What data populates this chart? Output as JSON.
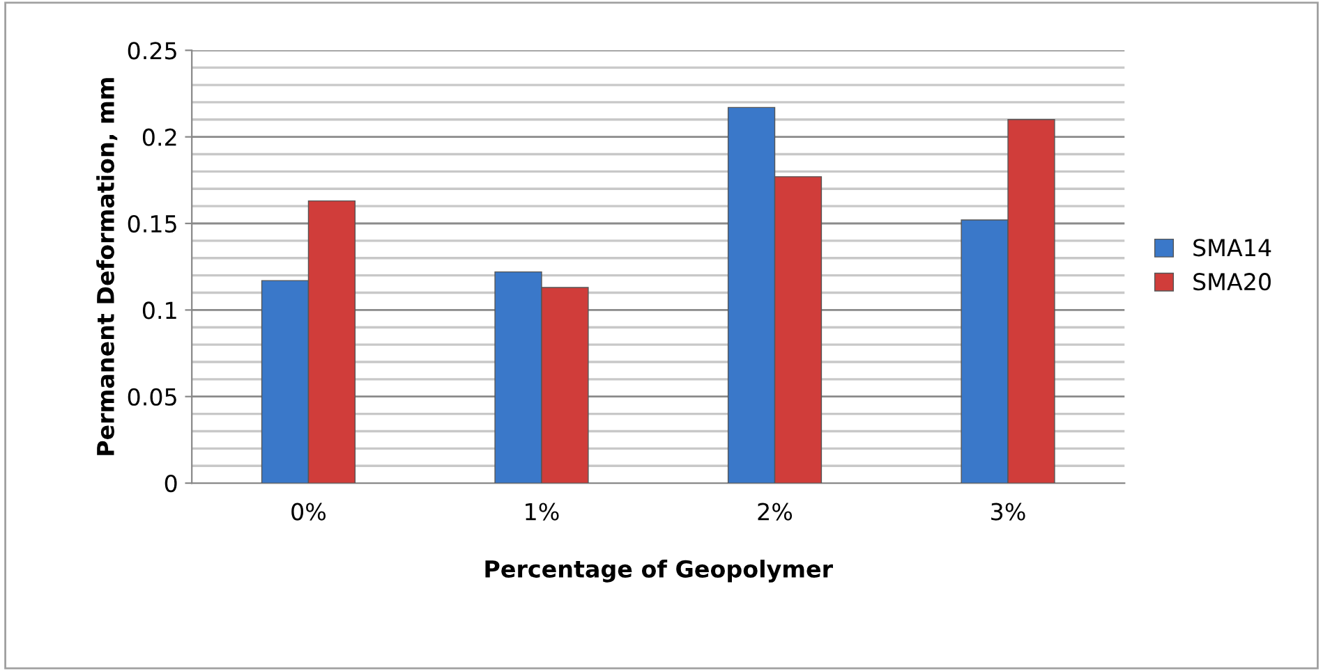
{
  "chart_data": {
    "type": "bar",
    "xlabel": "Percentage of Geopolymer",
    "ylabel": "Permanent Deformation, mm",
    "categories": [
      "0%",
      "1%",
      "2%",
      "3%"
    ],
    "series": [
      {
        "name": "SMA14",
        "color": "#3a78c9",
        "values": [
          0.117,
          0.122,
          0.217,
          0.152
        ]
      },
      {
        "name": "SMA20",
        "color": "#d03d3a",
        "values": [
          0.163,
          0.113,
          0.177,
          0.21
        ]
      }
    ],
    "ylim": [
      0,
      0.25
    ],
    "yticks": [
      0,
      0.05,
      0.1,
      0.15,
      0.2,
      0.25
    ],
    "grid": "y",
    "legend": "right"
  }
}
